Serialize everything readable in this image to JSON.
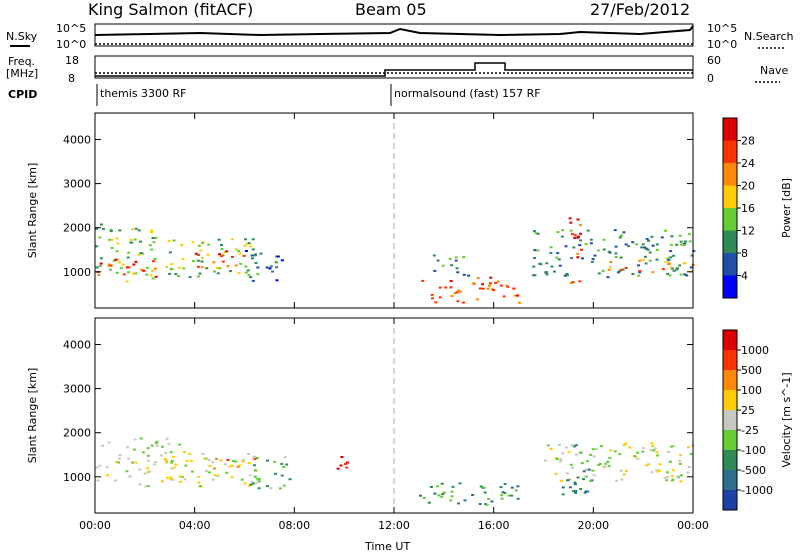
{
  "header": {
    "station": "King Salmon (fitACF)",
    "beam": "Beam 05",
    "date": "27/Feb/2012"
  },
  "top_panels": {
    "nsky_label": "N.Sky",
    "nsearch_label": "N.Search",
    "nsky_ticks": [
      "10^5",
      "10^0"
    ],
    "freq_label_line1": "Freq.",
    "freq_label_line2": "[MHz]",
    "freq_ticks": [
      "18",
      "8"
    ],
    "nave_label": "Nave",
    "nave_ticks": [
      "60",
      "0"
    ],
    "cpid_label": "CPID",
    "cpid_segments": [
      "themis 3300 RF",
      "normalsound (fast) 157 RF"
    ]
  },
  "chart_data": [
    {
      "type": "heatmap",
      "name": "power",
      "ylabel": "Slant Range [km]",
      "xlabel": "Time UT",
      "xlim": [
        0,
        24
      ],
      "ylim": [
        180,
        4600
      ],
      "yticks": [
        "1000",
        "2000",
        "3000",
        "4000"
      ],
      "xticks": [
        "00:00",
        "04:00",
        "08:00",
        "12:00",
        "16:00",
        "20:00",
        "00:00"
      ],
      "colorbar": {
        "label": "Power [dB]",
        "ticks": [
          "4",
          "8",
          "12",
          "16",
          "20",
          "24",
          "28"
        ],
        "colors": [
          "#0000ff",
          "#1f4fa8",
          "#2e8b57",
          "#66cc33",
          "#ffcc00",
          "#ff8800",
          "#ff3300",
          "#dd0000"
        ]
      },
      "regions": [
        {
          "t0": 0.0,
          "t1": 2.5,
          "r0": 800,
          "r1": 2100,
          "level": 3
        },
        {
          "t0": 0.0,
          "t1": 2.5,
          "r0": 900,
          "r1": 1300,
          "level": 6
        },
        {
          "t0": 2.5,
          "t1": 6.5,
          "r0": 900,
          "r1": 1800,
          "level": 3
        },
        {
          "t0": 4.0,
          "t1": 6.0,
          "r0": 1100,
          "r1": 1500,
          "level": 6
        },
        {
          "t0": 6.0,
          "t1": 7.5,
          "r0": 800,
          "r1": 1500,
          "level": 1
        },
        {
          "t0": 13.0,
          "t1": 17.0,
          "r0": 300,
          "r1": 900,
          "level": 6
        },
        {
          "t0": 13.5,
          "t1": 15.0,
          "r0": 900,
          "r1": 1400,
          "level": 2
        },
        {
          "t0": 17.5,
          "t1": 24.0,
          "r0": 900,
          "r1": 2000,
          "level": 2
        },
        {
          "t0": 20.5,
          "t1": 24.0,
          "r0": 1000,
          "r1": 1300,
          "level": 5
        },
        {
          "t0": 19.0,
          "t1": 19.6,
          "r0": 700,
          "r1": 2300,
          "level": 6
        }
      ]
    },
    {
      "type": "heatmap",
      "name": "velocity",
      "ylabel": "Slant Range [km]",
      "xlabel": "Time UT",
      "xlim": [
        0,
        24
      ],
      "ylim": [
        180,
        4600
      ],
      "yticks": [
        "1000",
        "2000",
        "3000",
        "4000"
      ],
      "xticks": [
        "00:00",
        "04:00",
        "08:00",
        "12:00",
        "16:00",
        "20:00",
        "00:00"
      ],
      "colorbar": {
        "label": "Velocity [m s^-1]",
        "ticks": [
          "1000",
          "500",
          "100",
          "25",
          "-25",
          "-100",
          "-500",
          "-1000"
        ],
        "colors": [
          "#1f3fa8",
          "#2e6e8e",
          "#2e8b57",
          "#66cc33",
          "#c8c8c0",
          "#ffcc00",
          "#ff8800",
          "#ff3300",
          "#dd0000"
        ]
      },
      "regions": [
        {
          "t0": 0.0,
          "t1": 3.5,
          "r0": 800,
          "r1": 1900,
          "level": 4
        },
        {
          "t0": 3.5,
          "t1": 6.5,
          "r0": 800,
          "r1": 1600,
          "level": 4
        },
        {
          "t0": 4.5,
          "t1": 6.5,
          "r0": 1200,
          "r1": 1500,
          "level": 6
        },
        {
          "t0": 6.0,
          "t1": 7.8,
          "r0": 700,
          "r1": 1500,
          "level": 3
        },
        {
          "t0": 9.5,
          "t1": 10.2,
          "r0": 1200,
          "r1": 1700,
          "level": 7
        },
        {
          "t0": 13.0,
          "t1": 17.0,
          "r0": 300,
          "r1": 900,
          "level": 2
        },
        {
          "t0": 18.0,
          "t1": 24.0,
          "r0": 900,
          "r1": 1800,
          "level": 4
        },
        {
          "t0": 18.5,
          "t1": 20.0,
          "r0": 600,
          "r1": 1800,
          "level": 2
        }
      ]
    }
  ]
}
